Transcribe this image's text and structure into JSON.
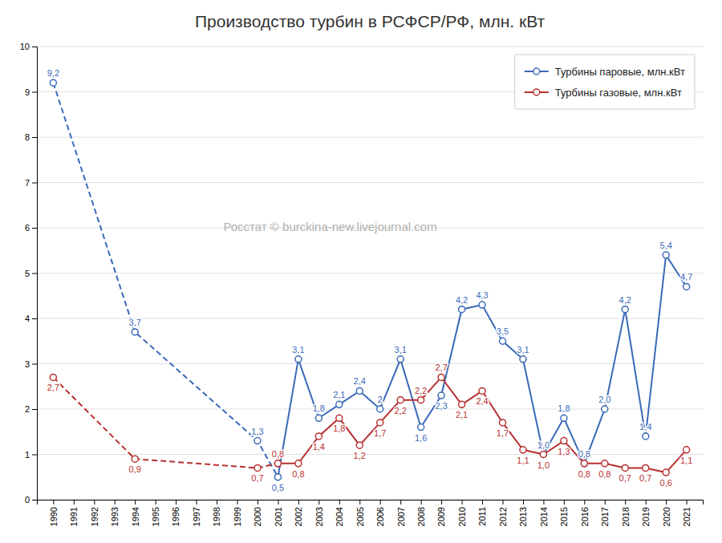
{
  "chart_data": {
    "type": "line",
    "title": "Производство турбин в РСФСР/РФ, млн. кВт",
    "annotations": [
      "Росстат © burckina-new.livejournal.com"
    ],
    "x": [
      1990,
      1994,
      2000,
      2001,
      2002,
      2003,
      2004,
      2005,
      2006,
      2007,
      2008,
      2009,
      2010,
      2011,
      2012,
      2013,
      2014,
      2015,
      2016,
      2017,
      2018,
      2019,
      2020,
      2021
    ],
    "series": [
      {
        "color": "#3a6ab8",
        "line_style": "dashed",
        "marker": "circle",
        "values": [
          9.2,
          3.7,
          1.3,
          0.5,
          null,
          null,
          null,
          null,
          null,
          null,
          null,
          null,
          null,
          null,
          null,
          null,
          null,
          null,
          null,
          null,
          null,
          null,
          null,
          null
        ],
        "value_labels": [
          "9,2",
          "3,7",
          "1,3",
          "0,5",
          null,
          null,
          null,
          null,
          null,
          null,
          null,
          null,
          null,
          null,
          null,
          null,
          null,
          null,
          null,
          null,
          null,
          null,
          null,
          null
        ]
      },
      {
        "color": "#b83030",
        "line_style": "dashed",
        "marker": "circle",
        "values": [
          2.7,
          0.9,
          0.7,
          0.8,
          null,
          null,
          null,
          null,
          null,
          null,
          null,
          null,
          null,
          null,
          null,
          null,
          null,
          null,
          null,
          null,
          null,
          null,
          null,
          null
        ],
        "value_labels": [
          "2,7",
          "0,9",
          "0,7",
          "0,8",
          null,
          null,
          null,
          null,
          null,
          null,
          null,
          null,
          null,
          null,
          null,
          null,
          null,
          null,
          null,
          null,
          null,
          null,
          null,
          null
        ]
      },
      {
        "name": "Турбины паровые, млн.кВт",
        "color": "#3a6ab8",
        "line_style": "solid",
        "marker": "circle",
        "values": [
          null,
          null,
          null,
          0.5,
          3.1,
          1.8,
          2.1,
          2.4,
          2.0,
          3.1,
          1.6,
          2.3,
          4.2,
          4.3,
          3.5,
          3.1,
          1.0,
          1.8,
          0.8,
          2.0,
          4.2,
          1.4,
          5.4,
          4.7
        ],
        "value_labels": [
          null,
          null,
          null,
          null,
          "3,1",
          "1,8",
          "2,1",
          "2,4",
          "2",
          "3,1",
          "1,6",
          "2,3",
          "4,2",
          "4,3",
          "3,5",
          "3,1",
          "1,0",
          "1,8",
          "0,8",
          "2,0",
          "4,2",
          "1,4",
          "5,4",
          "4,7"
        ]
      },
      {
        "name": "Турбины газовые, млн.кВт",
        "color": "#b83030",
        "line_style": "solid",
        "marker": "circle",
        "values": [
          null,
          null,
          null,
          0.8,
          0.8,
          1.4,
          1.8,
          1.2,
          1.7,
          2.2,
          2.2,
          2.7,
          2.1,
          2.4,
          1.7,
          1.1,
          1.0,
          1.3,
          0.8,
          0.8,
          0.7,
          0.7,
          0.6,
          1.1
        ],
        "value_labels": [
          null,
          null,
          null,
          null,
          "0,8",
          "1,4",
          "1,8",
          "1,2",
          "1,7",
          "2,2",
          "2,2",
          "2,7",
          "2,1",
          "2,4",
          "1,7",
          "1,1",
          "1,0",
          "1,3",
          "0,8",
          "0,8",
          "0,7",
          "0,7",
          "0,6",
          "1,1"
        ]
      }
    ],
    "xlim": [
      1989.2,
      2021.8
    ],
    "xticks": [
      1990,
      1991,
      1992,
      1993,
      1994,
      1995,
      1996,
      1997,
      1998,
      1999,
      2000,
      2001,
      2002,
      2003,
      2004,
      2005,
      2006,
      2007,
      2008,
      2009,
      2010,
      2011,
      2012,
      2013,
      2014,
      2015,
      2016,
      2017,
      2018,
      2019,
      2020,
      2021
    ],
    "ylim": [
      0,
      10
    ],
    "yticks": [
      0,
      1,
      2,
      3,
      4,
      5,
      6,
      7,
      8,
      9,
      10
    ],
    "grid": true,
    "legend": "upper right",
    "data_labels": true
  }
}
